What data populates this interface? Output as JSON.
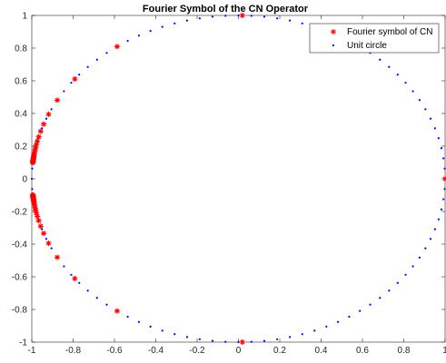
{
  "chart_data": {
    "type": "scatter",
    "title": "Fourier Symbol of the CN Operator",
    "xlabel": "",
    "ylabel": "",
    "xlim": [
      -1,
      1
    ],
    "ylim": [
      -1,
      1
    ],
    "xticks": [
      -1,
      -0.8,
      -0.6,
      -0.4,
      -0.2,
      0,
      0.2,
      0.4,
      0.6,
      0.8,
      1
    ],
    "yticks": [
      -1,
      -0.8,
      -0.6,
      -0.4,
      -0.2,
      0,
      0.2,
      0.4,
      0.6,
      0.8,
      1
    ],
    "xtick_labels": [
      "-1",
      "-0.8",
      "-0.6",
      "-0.4",
      "-0.2",
      "0",
      "0.2",
      "0.4",
      "0.6",
      "0.8",
      "1"
    ],
    "ytick_labels": [
      "-1",
      "-0.8",
      "-0.6",
      "-0.4",
      "-0.2",
      "0",
      "0.2",
      "0.4",
      "0.6",
      "0.8",
      "1"
    ],
    "grid": false,
    "legend_position": "top-right",
    "series": [
      {
        "name": "Fourier symbol of CN",
        "marker": "asterisk",
        "color": "#ff0000",
        "points_description": "computed in script",
        "count": 128
      },
      {
        "name": "Unit circle",
        "marker": "dot",
        "color": "#0000ff",
        "count": 100
      }
    ]
  }
}
